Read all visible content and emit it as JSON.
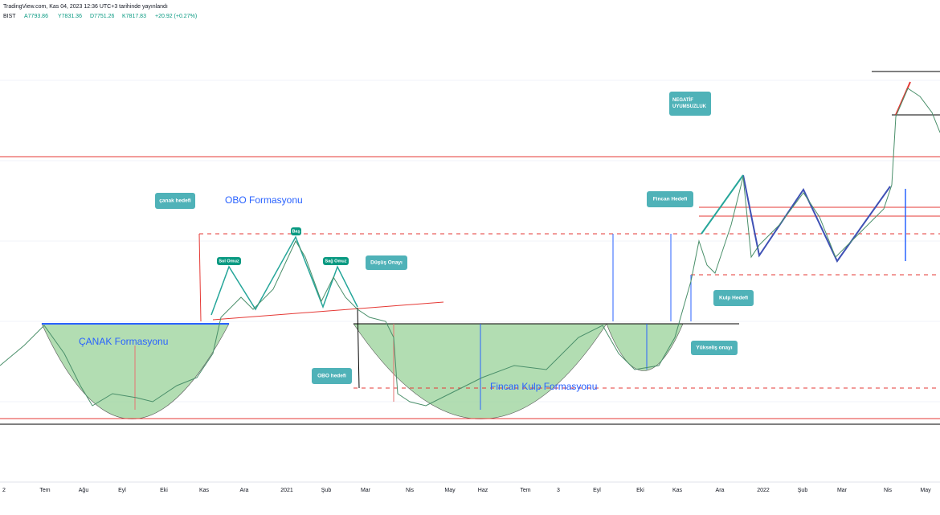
{
  "header": {
    "title": "TradingView.com, Kas 04, 2023 12:36 UTC+3 tarihinde yayınlandı",
    "symbol": "BIST",
    "open": "A7793.86",
    "high": "Y7831.36",
    "low": "D7751.26",
    "close": "K7817.83",
    "change": "+20.92 (+0.27%)"
  },
  "annotations": [
    "çanak hedefi",
    "OBO Formasyonu",
    "Baş",
    "Sol Omuz",
    "Sağ Omuz",
    "Düşüş Onayı",
    "ÇANAK Formasyonu",
    "OBO hedefi",
    "Fincan Kulp Formasyonu",
    "Fincan Hedefi",
    "Kulp Hedefi",
    "Yükseliş onayı",
    "NEGATİF UYUMSUZLUK"
  ],
  "x_axis": [
    "2",
    "Tem",
    "Ağu",
    "Eyl",
    "Eki",
    "Kas",
    "Ara",
    "2021",
    "Şub",
    "Mar",
    "Nis",
    "May",
    "Haz",
    "Tem",
    "3",
    "Eyl",
    "Eki",
    "Kas",
    "Ara",
    "2022",
    "Şub",
    "Mar",
    "Nis",
    "May"
  ]
}
